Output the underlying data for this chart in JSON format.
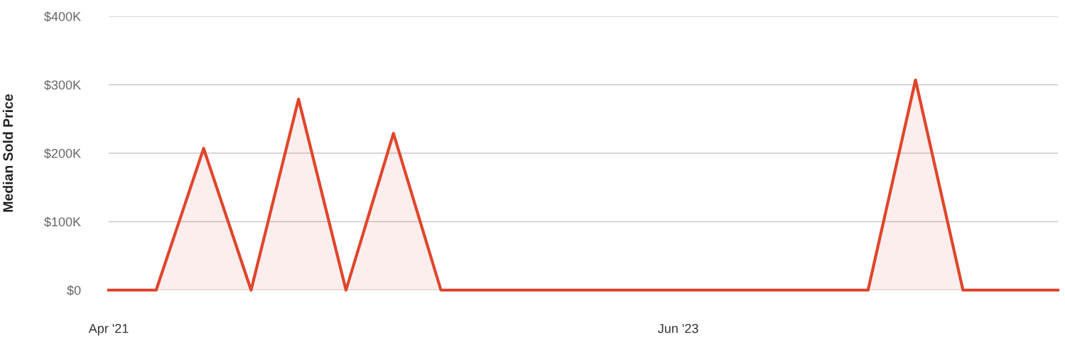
{
  "chart_data": {
    "type": "area",
    "ylabel": "Median Sold Price",
    "categories": [
      "Apr '21",
      null,
      null,
      null,
      null,
      null,
      null,
      null,
      null,
      null,
      null,
      null,
      "Jun '23",
      null,
      null,
      null,
      null,
      null,
      null,
      null,
      null
    ],
    "series": [
      {
        "color": "#e0452b",
        "values": [
          0,
          0,
          207000,
          0,
          279000,
          0,
          229000,
          0,
          0,
          0,
          0,
          0,
          0,
          0,
          0,
          0,
          0,
          307000,
          0,
          0,
          0
        ]
      }
    ],
    "ylim": [
      0,
      400000
    ],
    "yticks": [
      {
        "value": 0,
        "label": "$0"
      },
      {
        "value": 100000,
        "label": "$100K"
      },
      {
        "value": 200000,
        "label": "$200K"
      },
      {
        "value": 300000,
        "label": "$300K"
      },
      {
        "value": 400000,
        "label": "$400K"
      }
    ],
    "grid": "y",
    "marker": "none",
    "line_style": "solid"
  }
}
